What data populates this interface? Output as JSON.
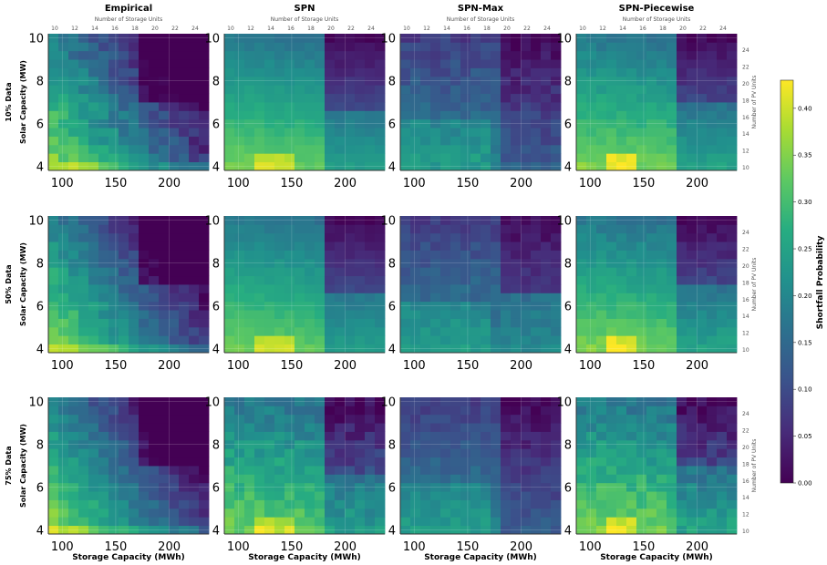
{
  "chart_data": {
    "type": "heatmap",
    "columns": [
      "Empirical",
      "SPN",
      "SPN-Max",
      "SPN-Piecewise"
    ],
    "rows": [
      "10% Data",
      "50% Data",
      "75% Data"
    ],
    "ylabel": "Solar Capacity (MW)",
    "xlabel": "Storage Capacity (MWh)",
    "top_axis_label": "Number of Storage Units",
    "right_axis_label": "Number of PV Units",
    "colorbar_label": "Shortfall Probability",
    "x_range": [
      87,
      237
    ],
    "y_range": [
      3.8,
      10.2
    ],
    "x_ticks": [
      100,
      150,
      200
    ],
    "y_ticks": [
      4,
      6,
      8,
      10
    ],
    "storage_unit_ticks": [
      "10",
      "12",
      "14",
      "16",
      "18",
      "20",
      "22",
      "24"
    ],
    "pv_unit_ticks": [
      "10",
      "12",
      "14",
      "16",
      "18",
      "20",
      "22",
      "24"
    ],
    "colorbar_range": [
      0,
      0.43
    ],
    "colorbar_ticks": [
      "0.00",
      "0.05",
      "0.10",
      "0.15",
      "0.20",
      "0.25",
      "0.30",
      "0.35",
      "0.40"
    ],
    "grid_size": {
      "storage_cols": 16,
      "pv_rows": 16
    },
    "approx_values": {
      "Empirical": {
        "low_storage_low_solar": 0.4,
        "mid": 0.22,
        "high_storage_high_solar": 0.03
      },
      "SPN": {
        "low_storage_low_solar": 0.42,
        "mid": 0.22,
        "high_storage_high_solar": 0.04
      },
      "SPN-Max": {
        "low_storage_low_solar": 0.24,
        "mid": 0.13,
        "high_storage_high_solar": 0.03
      },
      "SPN-Piecewise": {
        "low_storage_low_solar": 0.42,
        "mid": 0.22,
        "high_storage_high_solar": 0.04
      }
    }
  }
}
